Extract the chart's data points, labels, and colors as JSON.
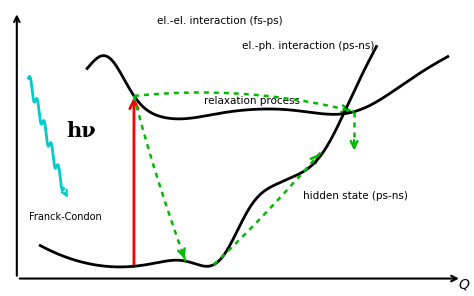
{
  "background_color": "#ffffff",
  "figsize": [
    4.74,
    2.96
  ],
  "dpi": 100,
  "labels": {
    "el_el": "el.-el. interaction (fs-ps)",
    "el_ph": "el.-ph. interaction (ps-ns)",
    "relaxation": "relaxation process",
    "hidden_state": "hidden state (ps-ns)",
    "franck_condon": "Franck-Condon",
    "hnu": "hν",
    "Q": "Q"
  },
  "colors": {
    "curve": "#000000",
    "arrow_red": "#ff0000",
    "arrow_green": "#00bb00",
    "photon": "#00cccc",
    "text": "#000000"
  },
  "xlim": [
    0,
    10
  ],
  "ylim": [
    0,
    10
  ]
}
